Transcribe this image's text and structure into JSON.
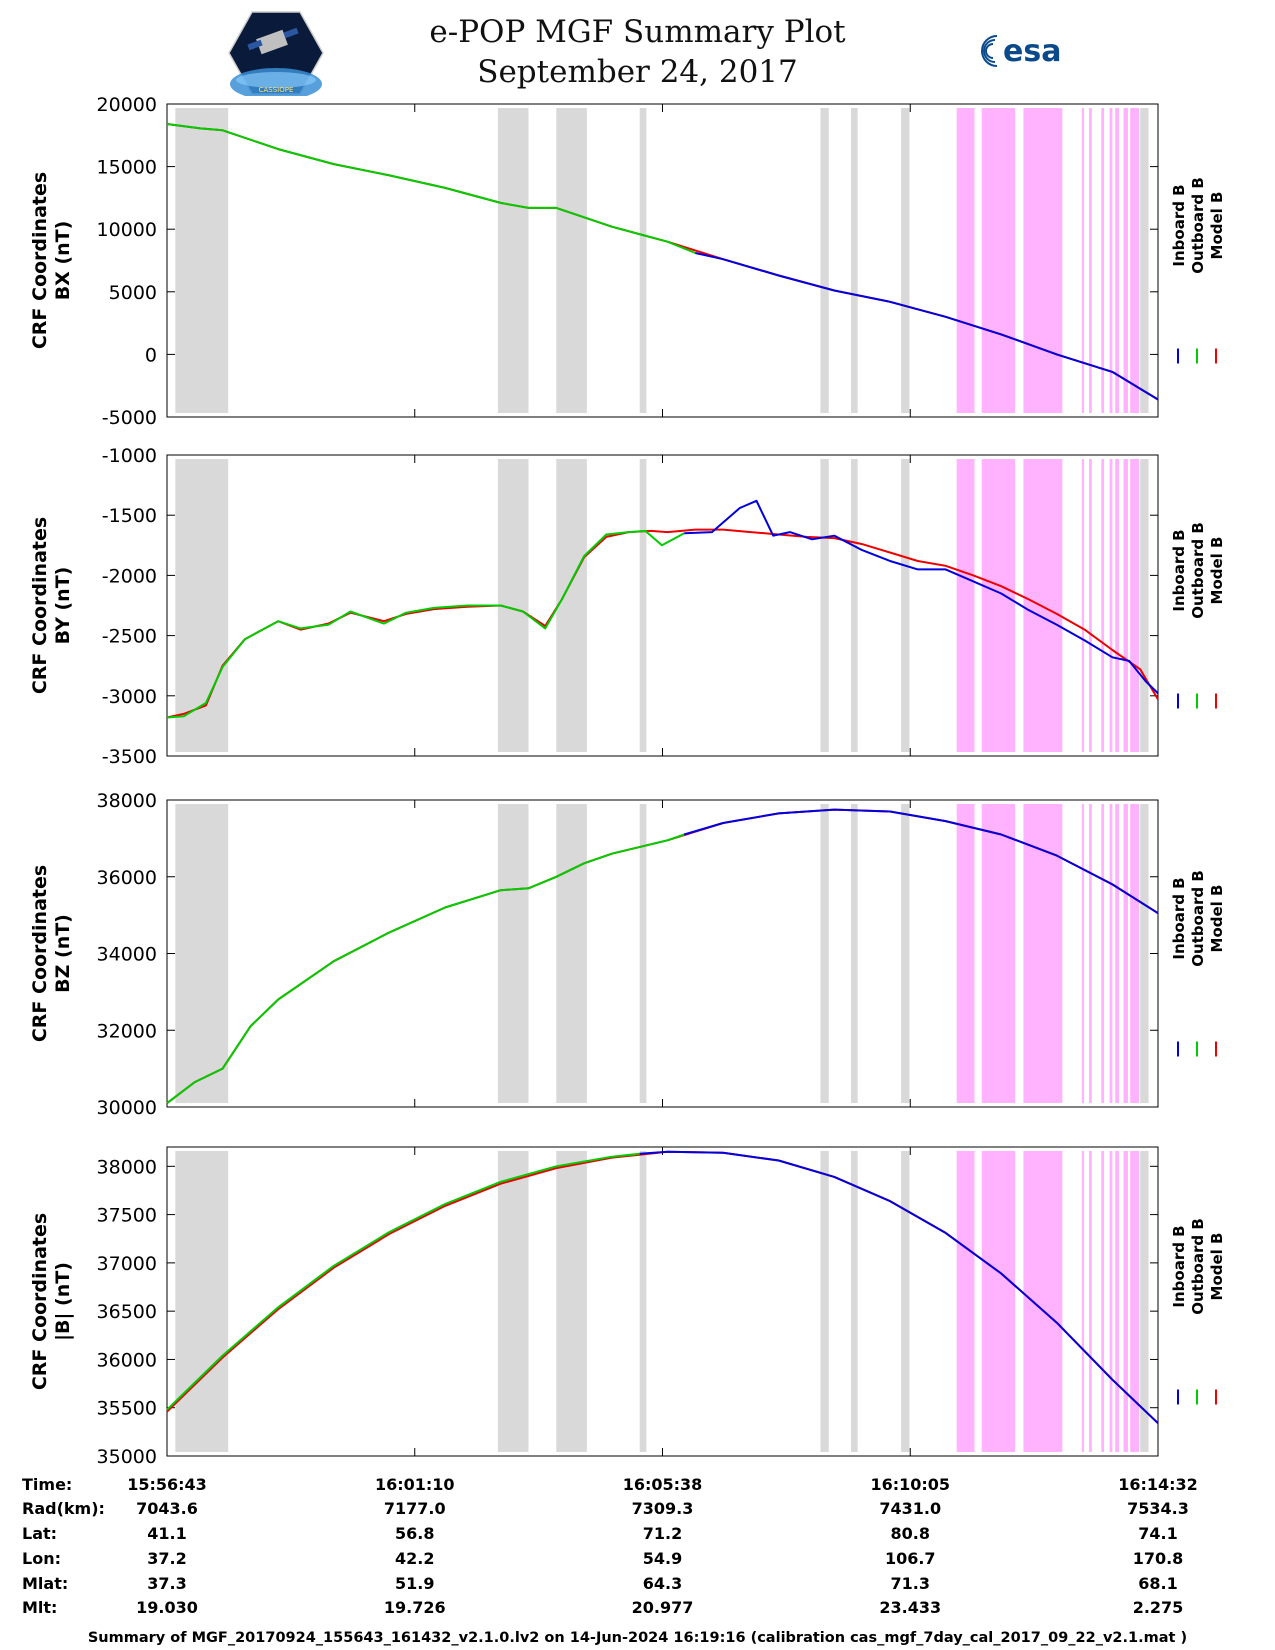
{
  "header": {
    "title_line1": "e-POP MGF Summary Plot",
    "title_line2": "September 24, 2017",
    "left_logo_text": "CASSIOPE",
    "right_logo_text": "esa"
  },
  "colors": {
    "inboard": "#0000dd",
    "outboard": "#00cc00",
    "model": "#ee0000",
    "gray_band": "#d9d9d9",
    "pink_band": "#ffb3ff"
  },
  "legend": [
    "Inboard B",
    "Outboard B",
    "Model B"
  ],
  "chart_data": {
    "type": "line",
    "time_range_minutes": [
      0,
      17.82
    ],
    "gray_intervals": [
      [
        0.15,
        1.1
      ],
      [
        5.95,
        6.5
      ],
      [
        7.0,
        7.55
      ],
      [
        8.5,
        8.62
      ],
      [
        11.75,
        11.9
      ],
      [
        12.3,
        12.42
      ],
      [
        13.2,
        13.35
      ],
      [
        17.5,
        17.65
      ]
    ],
    "pink_intervals": [
      [
        14.2,
        14.52
      ],
      [
        14.65,
        15.25
      ],
      [
        15.4,
        16.1
      ],
      [
        16.45,
        16.49
      ],
      [
        16.58,
        16.63
      ],
      [
        16.8,
        16.85
      ],
      [
        16.95,
        17.0
      ],
      [
        17.05,
        17.12
      ],
      [
        17.2,
        17.28
      ],
      [
        17.32,
        17.48
      ]
    ],
    "panels": [
      {
        "id": "bx",
        "ylabel_line1": "CRF Coordinates",
        "ylabel_line2": "BX (nT)",
        "ylim": [
          -5000,
          20000
        ],
        "yticks": [
          20000,
          15000,
          10000,
          5000,
          0,
          -5000
        ],
        "ytick_labels": [
          "20000",
          "15000",
          "10000",
          "5000",
          "0",
          "-5000"
        ],
        "series": [
          {
            "name": "Model B",
            "x": [
              0,
              0.6,
              1.0,
              2.0,
              3.0,
              4.0,
              5.0,
              6.0,
              6.5,
              7.0,
              8.0,
              9.0,
              10.0,
              11.0,
              12.0,
              13.0,
              14.0,
              15.0,
              16.0,
              17.0,
              17.82
            ],
            "y": [
              18400,
              18050,
              17900,
              16400,
              15200,
              14300,
              13300,
              12100,
              11700,
              11700,
              10200,
              9000,
              7600,
              6300,
              5100,
              4200,
              3000,
              1600,
              0,
              -1400,
              -3600
            ]
          },
          {
            "name": "Outboard B",
            "x": [
              0,
              0.6,
              1.0,
              2.0,
              3.0,
              4.0,
              5.0,
              6.0,
              6.5,
              7.0,
              8.0,
              9.0,
              9.5
            ],
            "y": [
              18400,
              18050,
              17900,
              16400,
              15200,
              14300,
              13300,
              12100,
              11700,
              11700,
              10200,
              9000,
              8100
            ]
          },
          {
            "name": "Inboard B",
            "x": [
              9.5,
              10.0,
              11.0,
              12.0,
              13.0,
              14.0,
              15.0,
              16.0,
              17.0,
              17.82
            ],
            "y": [
              8100,
              7600,
              6300,
              5100,
              4200,
              3000,
              1600,
              0,
              -1400,
              -3600
            ]
          }
        ]
      },
      {
        "id": "by",
        "ylabel_line1": "CRF Coordinates",
        "ylabel_line2": "BY (nT)",
        "ylim": [
          -3500,
          -1000
        ],
        "yticks": [
          -1000,
          -1500,
          -2000,
          -2500,
          -3000,
          -3500
        ],
        "ytick_labels": [
          "-1000",
          "-1500",
          "-2000",
          "-2500",
          "-3000",
          "-3500"
        ],
        "series": [
          {
            "name": "Model B",
            "x": [
              0,
              0.3,
              0.7,
              1.0,
              1.4,
              2.0,
              2.4,
              2.9,
              3.3,
              3.9,
              4.3,
              4.8,
              5.4,
              6.0,
              6.4,
              6.8,
              7.1,
              7.5,
              7.9,
              8.3,
              8.7,
              9.0,
              9.5,
              10.0,
              10.5,
              11.0,
              11.5,
              12.0,
              12.5,
              13.0,
              13.5,
              14.0,
              14.5,
              15.0,
              15.5,
              16.0,
              16.5,
              17.0,
              17.5,
              17.82
            ],
            "y": [
              -3180,
              -3150,
              -3080,
              -2750,
              -2530,
              -2380,
              -2450,
              -2400,
              -2310,
              -2380,
              -2320,
              -2280,
              -2260,
              -2250,
              -2300,
              -2420,
              -2200,
              -1850,
              -1680,
              -1640,
              -1630,
              -1640,
              -1620,
              -1620,
              -1640,
              -1660,
              -1680,
              -1690,
              -1740,
              -1810,
              -1880,
              -1920,
              -2000,
              -2090,
              -2200,
              -2320,
              -2450,
              -2620,
              -2780,
              -3030
            ]
          },
          {
            "name": "Outboard B",
            "x": [
              0,
              0.3,
              0.7,
              1.0,
              1.4,
              2.0,
              2.4,
              2.9,
              3.3,
              3.9,
              4.3,
              4.8,
              5.4,
              6.0,
              6.4,
              6.8,
              7.1,
              7.5,
              7.9,
              8.3,
              8.6,
              8.9,
              9.3
            ],
            "y": [
              -3180,
              -3170,
              -3060,
              -2760,
              -2530,
              -2380,
              -2440,
              -2410,
              -2300,
              -2400,
              -2310,
              -2270,
              -2250,
              -2250,
              -2300,
              -2440,
              -2200,
              -1840,
              -1660,
              -1640,
              -1630,
              -1750,
              -1650
            ]
          },
          {
            "name": "Inboard B",
            "x": [
              9.3,
              9.8,
              10.3,
              10.6,
              10.9,
              11.2,
              11.6,
              12.0,
              12.5,
              13.0,
              13.5,
              14.0,
              14.5,
              15.0,
              15.5,
              16.0,
              16.5,
              17.0,
              17.3,
              17.6,
              17.82
            ],
            "y": [
              -1650,
              -1640,
              -1440,
              -1380,
              -1670,
              -1640,
              -1700,
              -1670,
              -1790,
              -1880,
              -1950,
              -1950,
              -2050,
              -2150,
              -2290,
              -2410,
              -2540,
              -2680,
              -2710,
              -2880,
              -2980
            ]
          }
        ]
      },
      {
        "id": "bz",
        "ylabel_line1": "CRF Coordinates",
        "ylabel_line2": "BZ (nT)",
        "ylim": [
          30000,
          38000
        ],
        "yticks": [
          38000,
          36000,
          34000,
          32000,
          30000
        ],
        "ytick_labels": [
          "38000",
          "36000",
          "34000",
          "32000",
          "30000"
        ],
        "series": [
          {
            "name": "Model B",
            "x": [
              0,
              0.5,
              1.0,
              1.5,
              2.0,
              3.0,
              4.0,
              5.0,
              6.0,
              6.5,
              7.0,
              7.5,
              8.0,
              9.0,
              10.0,
              11.0,
              12.0,
              13.0,
              14.0,
              15.0,
              16.0,
              17.0,
              17.82
            ],
            "y": [
              30100,
              30650,
              31000,
              32100,
              32800,
              33800,
              34550,
              35200,
              35650,
              35700,
              36000,
              36350,
              36600,
              36950,
              37400,
              37650,
              37750,
              37700,
              37450,
              37100,
              36550,
              35800,
              35050
            ]
          },
          {
            "name": "Outboard B",
            "x": [
              0,
              0.5,
              1.0,
              1.5,
              2.0,
              3.0,
              4.0,
              5.0,
              6.0,
              6.5,
              7.0,
              7.5,
              8.0,
              9.0,
              9.3
            ],
            "y": [
              30100,
              30650,
              31000,
              32100,
              32800,
              33800,
              34550,
              35200,
              35650,
              35700,
              36000,
              36350,
              36600,
              36950,
              37100
            ]
          },
          {
            "name": "Inboard B",
            "x": [
              9.3,
              10.0,
              11.0,
              12.0,
              13.0,
              14.0,
              15.0,
              16.0,
              17.0,
              17.82
            ],
            "y": [
              37100,
              37400,
              37650,
              37750,
              37700,
              37450,
              37100,
              36550,
              35800,
              35050
            ]
          }
        ]
      },
      {
        "id": "bmag",
        "ylabel_line1": "CRF Coordinates",
        "ylabel_line2": "|B| (nT)",
        "ylim": [
          35000,
          38200
        ],
        "yticks": [
          38000,
          37500,
          37000,
          36500,
          36000,
          35500,
          35000
        ],
        "ytick_labels": [
          "38000",
          "37500",
          "37000",
          "36500",
          "36000",
          "35500",
          "35000"
        ],
        "series": [
          {
            "name": "Model B",
            "x": [
              0,
              1,
              2,
              3,
              4,
              5,
              6,
              7,
              8,
              9,
              10,
              11,
              12,
              13,
              14,
              15,
              16,
              17,
              17.82
            ],
            "y": [
              35460,
              36020,
              36520,
              36950,
              37300,
              37590,
              37820,
              37980,
              38090,
              38150,
              38140,
              38060,
              37890,
              37640,
              37310,
              36890,
              36380,
              35790,
              35340
            ]
          },
          {
            "name": "Outboard B",
            "x": [
              0,
              1,
              2,
              3,
              4,
              5,
              6,
              7,
              8,
              8.5
            ],
            "y": [
              35480,
              36040,
              36540,
              36970,
              37320,
              37610,
              37840,
              38000,
              38100,
              38130
            ]
          },
          {
            "name": "Inboard B",
            "x": [
              8.5,
              9,
              10,
              11,
              12,
              13,
              14,
              15,
              16,
              17,
              17.82
            ],
            "y": [
              38130,
              38150,
              38140,
              38060,
              37890,
              37640,
              37310,
              36890,
              36380,
              35790,
              35340
            ]
          }
        ]
      }
    ],
    "x_ticks": [
      "15:56:43",
      "16:01:10",
      "16:05:38",
      "16:10:05",
      "16:14:32"
    ],
    "info_table": {
      "row_labels": [
        "Time:",
        "Rad(km):",
        "Lat:",
        "Lon:",
        "Mlat:",
        "Mlt:"
      ],
      "columns": [
        [
          "15:56:43",
          "7043.6",
          "41.1",
          "37.2",
          "37.3",
          "19.030"
        ],
        [
          "16:01:10",
          "7177.0",
          "56.8",
          "42.2",
          "51.9",
          "19.726"
        ],
        [
          "16:05:38",
          "7309.3",
          "71.2",
          "54.9",
          "64.3",
          "20.977"
        ],
        [
          "16:10:05",
          "7431.0",
          "80.8",
          "106.7",
          "71.3",
          "23.433"
        ],
        [
          "16:14:32",
          "7534.3",
          "74.1",
          "170.8",
          "68.1",
          "2.275"
        ]
      ]
    }
  },
  "footer": "Summary of MGF_20170924_155643_161432_v2.1.0.lv2 on 14-Jun-2024 16:19:16 (calibration cas_mgf_7day_cal_2017_09_22_v2.1.mat )"
}
